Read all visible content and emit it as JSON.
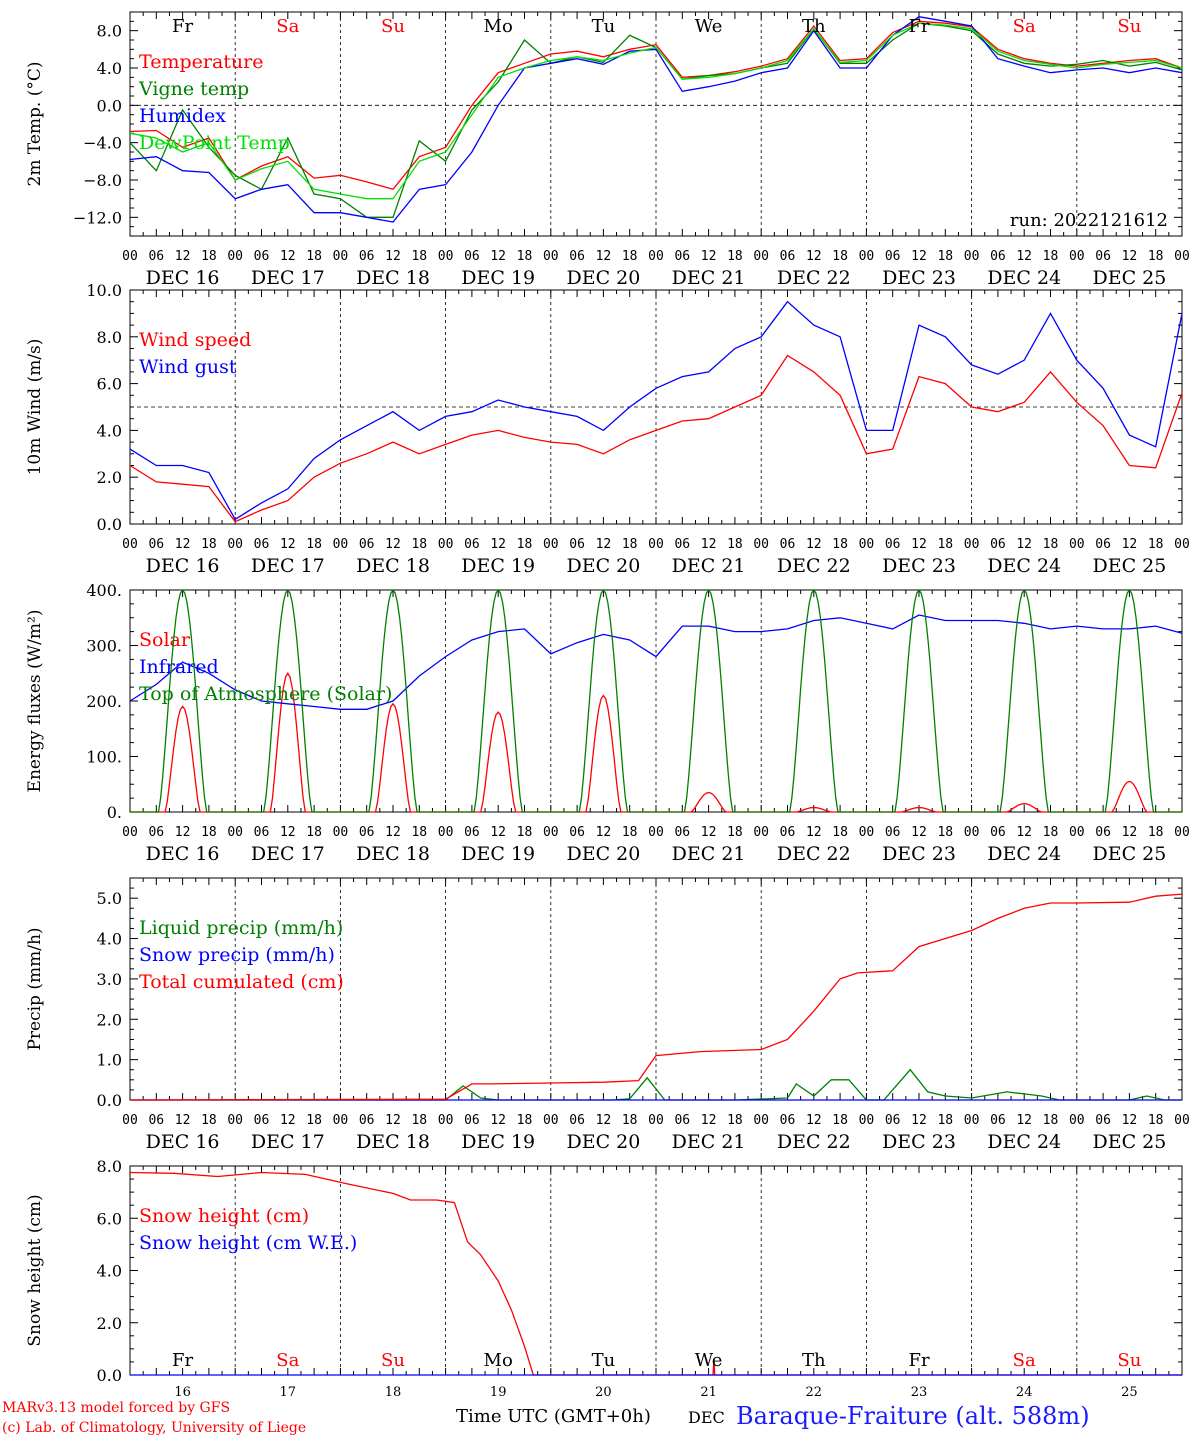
{
  "run_label": "run: 2022121612",
  "hour_ticks": [
    "00",
    "06",
    "12",
    "18"
  ],
  "final_tick": "00",
  "day_names": [
    {
      "text": "Fr",
      "color": "#000000"
    },
    {
      "text": "Sa",
      "color": "#ff0000"
    },
    {
      "text": "Su",
      "color": "#ff0000"
    },
    {
      "text": "Mo",
      "color": "#000000"
    },
    {
      "text": "Tu",
      "color": "#000000"
    },
    {
      "text": "We",
      "color": "#000000"
    },
    {
      "text": "Th",
      "color": "#000000"
    },
    {
      "text": "Fr",
      "color": "#000000"
    },
    {
      "text": "Sa",
      "color": "#ff0000"
    },
    {
      "text": "Su",
      "color": "#ff0000"
    }
  ],
  "date_labels": [
    "DEC 16",
    "DEC 17",
    "DEC 18",
    "DEC 19",
    "DEC 20",
    "DEC 21",
    "DEC 22",
    "DEC 23",
    "DEC 24",
    "DEC 25"
  ],
  "bottom_day_numbers": [
    "16",
    "17",
    "18",
    "19",
    "20",
    "21",
    "22",
    "23",
    "24",
    "25"
  ],
  "footer": {
    "credit_line1": "MARv3.13 model forced by GFS",
    "credit_line2": "(c) Lab. of Climatology, University of Liege",
    "x_axis_label": "Time UTC (GMT+0h)",
    "x_axis_unit": "DEC",
    "station": "Baraque-Fraiture (alt. 588m)"
  },
  "colors": {
    "red": "#ff0000",
    "blue": "#0000ff",
    "green": "#008000",
    "lime": "#00e000",
    "black": "#000000"
  },
  "chart_data": [
    {
      "type": "line",
      "ylabel": "2m Temp. (°C)",
      "ylim": [
        -14,
        10
      ],
      "yticks": [
        -12,
        -8,
        -4,
        0,
        4,
        8
      ],
      "ytick_labels": [
        "−12.0",
        "−8.0",
        "−4.0",
        "0.0",
        "4.0",
        "8.0"
      ],
      "ref_line": 0,
      "x_unit": "hours since DEC 16 00 UTC",
      "show_day_names": true,
      "series": [
        {
          "name": "Temperature",
          "color": "#ff0000",
          "x": [
            0,
            6,
            12,
            18,
            24,
            30,
            36,
            42,
            48,
            54,
            60,
            66,
            72,
            78,
            84,
            90,
            96,
            102,
            108,
            114,
            120,
            126,
            132,
            138,
            144,
            150,
            156,
            162,
            168,
            174,
            180,
            186,
            192,
            198,
            204,
            210,
            216,
            222,
            228,
            234,
            240
          ],
          "y": [
            -2.8,
            -2.7,
            -4.5,
            -3.5,
            -8,
            -6.5,
            -5.5,
            -7.8,
            -7.5,
            -8.2,
            -9,
            -5.5,
            -4.5,
            0,
            3.5,
            4.5,
            5.5,
            5.8,
            5.2,
            6,
            6.5,
            3,
            3.2,
            3.6,
            4.2,
            5,
            8.5,
            4.8,
            5,
            7.8,
            9,
            8.8,
            8.4,
            6,
            5,
            4.5,
            4.2,
            4.5,
            4.8,
            5,
            4
          ]
        },
        {
          "name": "Vigne temp",
          "color": "#008000",
          "x": [
            0,
            6,
            12,
            18,
            24,
            30,
            36,
            42,
            48,
            54,
            60,
            66,
            72,
            78,
            84,
            90,
            96,
            102,
            108,
            114,
            120,
            126,
            132,
            138,
            144,
            150,
            156,
            162,
            168,
            174,
            180,
            186,
            192,
            198,
            204,
            210,
            216,
            222,
            228,
            234,
            240
          ],
          "y": [
            -4,
            -7,
            -0.5,
            -4.5,
            -7.5,
            -9,
            -3.5,
            -9.5,
            -10,
            -12,
            -12,
            -3.8,
            -6,
            -0.5,
            2.5,
            7,
            4.5,
            5.2,
            4.6,
            7.5,
            6.2,
            2.8,
            3.2,
            3.4,
            4,
            4.5,
            8.2,
            4.5,
            4.5,
            7,
            8.8,
            8.5,
            8,
            5.5,
            4.5,
            4.2,
            4.4,
            4.8,
            4.2,
            4.6,
            3.8
          ]
        },
        {
          "name": "Humidex",
          "color": "#0000ff",
          "x": [
            0,
            6,
            12,
            18,
            24,
            30,
            36,
            42,
            48,
            54,
            60,
            66,
            72,
            78,
            84,
            90,
            96,
            102,
            108,
            114,
            120,
            126,
            132,
            138,
            144,
            150,
            156,
            162,
            168,
            174,
            180,
            186,
            192,
            198,
            204,
            210,
            216,
            222,
            228,
            234,
            240
          ],
          "y": [
            -5.8,
            -5.5,
            -7,
            -7.2,
            -10,
            -9,
            -8.5,
            -11.5,
            -11.5,
            -12,
            -12.5,
            -9,
            -8.5,
            -5,
            0,
            4,
            4.5,
            5,
            4.4,
            5.8,
            6,
            1.5,
            2,
            2.6,
            3.5,
            4,
            8,
            4,
            4,
            7.5,
            9.5,
            9,
            8.5,
            5,
            4.2,
            3.5,
            3.8,
            4,
            3.5,
            4,
            3.5
          ]
        },
        {
          "name": "DewPoint Temp",
          "color": "#00e000",
          "x": [
            0,
            6,
            12,
            18,
            24,
            30,
            36,
            42,
            48,
            54,
            60,
            66,
            72,
            78,
            84,
            90,
            96,
            102,
            108,
            114,
            120,
            126,
            132,
            138,
            144,
            150,
            156,
            162,
            168,
            174,
            180,
            186,
            192,
            198,
            204,
            210,
            216,
            222,
            228,
            234,
            240
          ],
          "y": [
            -3,
            -3.5,
            -5,
            -4,
            -8,
            -6.8,
            -6,
            -9,
            -9.5,
            -10,
            -10,
            -6,
            -5,
            -1,
            3,
            4,
            4.8,
            5.2,
            4.8,
            5.6,
            6.2,
            2.8,
            3,
            3.4,
            4,
            4.8,
            8.2,
            4.6,
            4.8,
            7.5,
            8.8,
            8.6,
            8.2,
            5.8,
            4.8,
            4.4,
            4,
            4.4,
            4.6,
            4.8,
            4
          ]
        }
      ]
    },
    {
      "type": "line",
      "ylabel": "10m Wind (m/s)",
      "ylim": [
        0,
        10
      ],
      "yticks": [
        0,
        2,
        4,
        6,
        8,
        10
      ],
      "ytick_labels": [
        "0.0",
        "2.0",
        "4.0",
        "6.0",
        "8.0",
        "10.0"
      ],
      "ref_line": 5,
      "x_unit": "hours since DEC 16 00 UTC",
      "series": [
        {
          "name": "Wind speed",
          "color": "#ff0000",
          "x": [
            0,
            6,
            12,
            18,
            24,
            30,
            36,
            42,
            48,
            54,
            60,
            66,
            72,
            78,
            84,
            90,
            96,
            102,
            108,
            114,
            120,
            126,
            132,
            138,
            144,
            150,
            156,
            162,
            168,
            174,
            180,
            186,
            192,
            198,
            204,
            210,
            216,
            222,
            228,
            234,
            240
          ],
          "y": [
            2.5,
            1.8,
            1.7,
            1.6,
            0.1,
            0.6,
            1,
            2,
            2.6,
            3,
            3.5,
            3,
            3.4,
            3.8,
            4,
            3.7,
            3.5,
            3.4,
            3,
            3.6,
            4,
            4.4,
            4.5,
            5,
            5.5,
            7.2,
            6.5,
            5.5,
            3,
            3.2,
            6.3,
            6,
            5,
            4.8,
            5.2,
            6.5,
            5.2,
            4.2,
            2.5,
            2.4,
            5.6
          ]
        },
        {
          "name": "Wind gust",
          "color": "#0000ff",
          "x": [
            0,
            6,
            12,
            18,
            24,
            30,
            36,
            42,
            48,
            54,
            60,
            66,
            72,
            78,
            84,
            90,
            96,
            102,
            108,
            114,
            120,
            126,
            132,
            138,
            144,
            150,
            156,
            162,
            168,
            174,
            180,
            186,
            192,
            198,
            204,
            210,
            216,
            222,
            228,
            234,
            240
          ],
          "y": [
            3.2,
            2.5,
            2.5,
            2.2,
            0.2,
            0.9,
            1.5,
            2.8,
            3.6,
            4.2,
            4.8,
            4,
            4.6,
            4.8,
            5.3,
            5,
            4.8,
            4.6,
            4,
            5,
            5.8,
            6.3,
            6.5,
            7.5,
            8,
            9.5,
            8.5,
            8,
            4,
            4,
            8.5,
            8,
            6.8,
            6.4,
            7,
            9,
            7,
            5.8,
            3.8,
            3.3,
            9
          ]
        }
      ]
    },
    {
      "type": "line",
      "ylabel": "Energy fluxes (W/m²)",
      "ylim": [
        0,
        400
      ],
      "yticks": [
        0,
        100,
        200,
        300,
        400
      ],
      "ytick_labels": [
        "0.",
        "100.",
        "200.",
        "300.",
        "400."
      ],
      "x_unit": "hours since DEC 16 00 UTC",
      "series": [
        {
          "name": "Solar",
          "color": "#ff0000",
          "diurnal_peaks": [
            190,
            250,
            195,
            180,
            210,
            35,
            8,
            8,
            15,
            55
          ]
        },
        {
          "name": "Infrared",
          "color": "#0000ff",
          "x": [
            0,
            6,
            12,
            18,
            24,
            30,
            36,
            42,
            48,
            54,
            60,
            66,
            72,
            78,
            84,
            90,
            96,
            102,
            108,
            114,
            120,
            126,
            132,
            138,
            144,
            150,
            156,
            162,
            168,
            174,
            180,
            186,
            192,
            198,
            204,
            210,
            216,
            222,
            228,
            234,
            240
          ],
          "y": [
            200,
            230,
            270,
            250,
            220,
            200,
            195,
            190,
            185,
            185,
            200,
            245,
            280,
            310,
            325,
            330,
            285,
            305,
            320,
            310,
            280,
            335,
            335,
            325,
            325,
            330,
            345,
            350,
            340,
            330,
            355,
            345,
            345,
            345,
            340,
            330,
            335,
            330,
            330,
            335,
            322
          ]
        },
        {
          "name": "Top of Atmosphere (Solar)",
          "color": "#008000",
          "diurnal_peaks": [
            400,
            400,
            400,
            400,
            400,
            400,
            400,
            400,
            400,
            400
          ]
        }
      ]
    },
    {
      "type": "line",
      "ylabel": "Precip (mm/h)",
      "ylim": [
        0,
        5.5
      ],
      "yticks": [
        0,
        1,
        2,
        3,
        4,
        5
      ],
      "ytick_labels": [
        "0.0",
        "1.0",
        "2.0",
        "3.0",
        "4.0",
        "5.0"
      ],
      "x_unit": "hours since DEC 16 00 UTC",
      "series": [
        {
          "name": "Liquid precip (mm/h)",
          "color": "#008000",
          "x": [
            0,
            72,
            76,
            80,
            84,
            110,
            114,
            118,
            122,
            138,
            150,
            152,
            156,
            160,
            164,
            168,
            172,
            178,
            182,
            186,
            192,
            200,
            204,
            208,
            212,
            228,
            232,
            236,
            240
          ],
          "y": [
            0,
            0,
            0.35,
            0.05,
            0,
            0,
            0.03,
            0.55,
            0,
            0,
            0.05,
            0.4,
            0.1,
            0.5,
            0.5,
            0,
            0,
            0.75,
            0.2,
            0.1,
            0.05,
            0.2,
            0.15,
            0.1,
            0,
            0,
            0.1,
            0,
            0
          ]
        },
        {
          "name": "Snow precip (mm/h)",
          "color": "#0000ff",
          "x": [
            0,
            240
          ],
          "y": [
            0,
            0
          ]
        },
        {
          "name": "Total cumulated (cm)",
          "color": "#ff0000",
          "x": [
            0,
            72,
            78,
            82,
            96,
            108,
            116,
            120,
            130,
            144,
            150,
            156,
            162,
            166,
            174,
            180,
            186,
            192,
            198,
            204,
            210,
            216,
            228,
            234,
            240
          ],
          "y": [
            0,
            0.02,
            0.4,
            0.4,
            0.42,
            0.44,
            0.48,
            1.1,
            1.2,
            1.25,
            1.5,
            2.2,
            3,
            3.15,
            3.2,
            3.8,
            4,
            4.2,
            4.5,
            4.75,
            4.88,
            4.88,
            4.9,
            5.05,
            5.1
          ]
        }
      ]
    },
    {
      "type": "line",
      "ylabel": "Snow height (cm)",
      "ylim": [
        0,
        8
      ],
      "yticks": [
        0,
        2,
        4,
        6,
        8
      ],
      "ytick_labels": [
        "0.0",
        "2.0",
        "4.0",
        "6.0",
        "8.0"
      ],
      "x_unit": "hours since DEC 16 00 UTC",
      "show_day_names_bottom": true,
      "series": [
        {
          "name": "Snow height (cm)",
          "color": "#ff0000",
          "x": [
            0,
            10,
            20,
            30,
            40,
            50,
            60,
            64,
            70,
            74,
            77,
            80,
            84,
            87,
            90,
            92,
            133,
            133.2,
            133.4,
            240
          ],
          "y": [
            7.75,
            7.72,
            7.6,
            7.75,
            7.68,
            7.3,
            6.95,
            6.7,
            6.7,
            6.6,
            5.1,
            4.6,
            3.6,
            2.5,
            1.1,
            0,
            0,
            0.6,
            0,
            0
          ]
        },
        {
          "name": "Snow height (cm W.E.)",
          "color": "#0000ff",
          "x": [
            0,
            240
          ],
          "y": [
            0,
            0
          ]
        }
      ]
    }
  ]
}
